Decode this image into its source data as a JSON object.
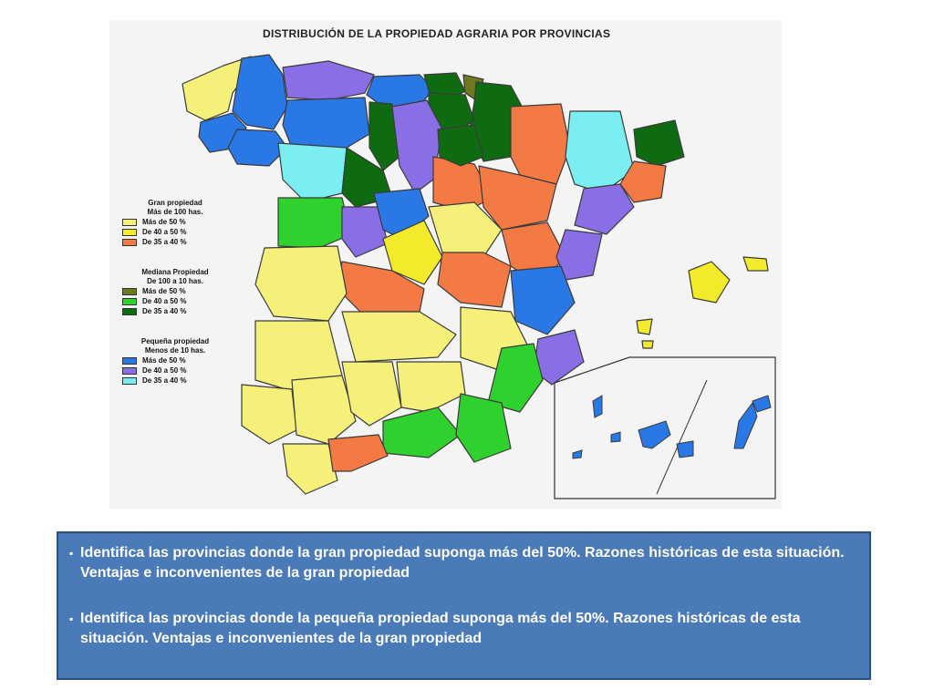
{
  "map": {
    "title": "DISTRIBUCIÓN DE LA PROPIEDAD AGRARIA POR PROVINCIAS",
    "legend": [
      {
        "heading": [
          "Gran propiedad",
          "Más de 100 has."
        ],
        "items": [
          {
            "label": "Más de 50 %",
            "color": "#f5f07a"
          },
          {
            "label": "De 40 a 50 %",
            "color": "#f2ea2a"
          },
          {
            "label": "De 35 a 40 %",
            "color": "#f47a45"
          }
        ]
      },
      {
        "heading": [
          "Mediana Propiedad",
          "De 100 a 10 has."
        ],
        "items": [
          {
            "label": "Más de 50 %",
            "color": "#6f7a20"
          },
          {
            "label": "De 40 a 50 %",
            "color": "#2ed12e"
          },
          {
            "label": "De 35 a 40 %",
            "color": "#0f6b12"
          }
        ]
      },
      {
        "heading": [
          "Pequeña propiedad",
          "Menos de 10 has."
        ],
        "items": [
          {
            "label": "Más de 50 %",
            "color": "#2a78e6"
          },
          {
            "label": "De 40 a 50 %",
            "color": "#8a6ee6"
          },
          {
            "label": "De 35 a 40 %",
            "color": "#7aeef0"
          }
        ]
      }
    ]
  },
  "tasks": [
    {
      "bullet": "▪",
      "text": "Identifica las provincias donde la gran propiedad suponga más del 50%. Razones históricas de esta situación. Ventajas e inconvenientes de la gran propiedad"
    },
    {
      "bullet": "▪",
      "text": "Identifica las provincias donde la pequeña propiedad suponga más del 50%. Razones históricas de esta situación. Ventajas e inconvenientes de la gran propiedad"
    }
  ]
}
